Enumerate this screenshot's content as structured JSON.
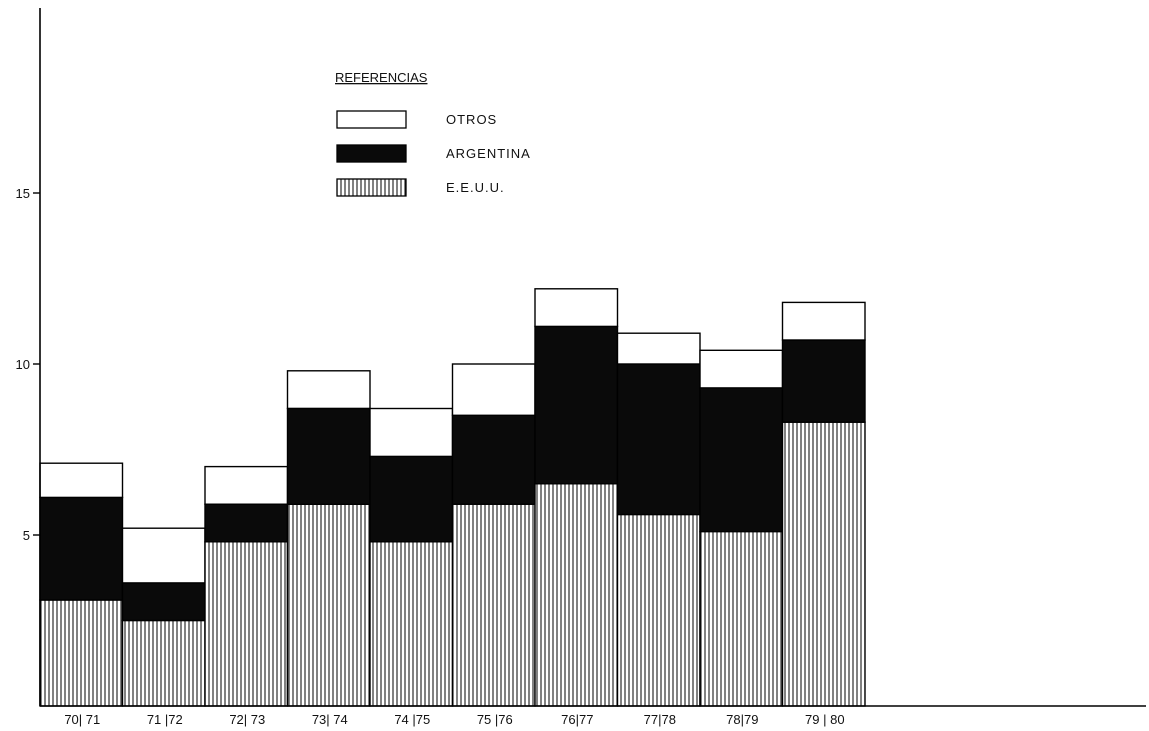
{
  "chart_data": {
    "type": "bar",
    "stacked": true,
    "categories": [
      "70| 71",
      "71 |72",
      "72| 73",
      "73| 74",
      "74 |75",
      "75 |76",
      "76|77",
      "77|78",
      "78|79",
      "79 | 80"
    ],
    "series": [
      {
        "name": "E.E.U.U.",
        "values": [
          3.1,
          2.5,
          4.8,
          5.9,
          4.8,
          5.9,
          6.5,
          5.6,
          5.1,
          8.3
        ],
        "color": "#ffffff",
        "pattern": "vertical-hatch"
      },
      {
        "name": "ARGENTINA",
        "values": [
          3.0,
          1.1,
          1.1,
          2.8,
          2.5,
          2.6,
          4.6,
          4.4,
          4.2,
          2.4
        ],
        "color": "#0a0a0a",
        "pattern": "solid"
      },
      {
        "name": "OTROS",
        "values": [
          1.0,
          1.6,
          1.1,
          1.1,
          1.4,
          1.5,
          1.1,
          0.9,
          1.1,
          1.1
        ],
        "color": "#ffffff",
        "pattern": "empty"
      }
    ],
    "yticks": [
      5,
      10,
      15
    ],
    "ylim": [
      0,
      20
    ],
    "legend_title": "REFERENCIAS",
    "legend_position": "top-center",
    "legend_order": [
      "OTROS",
      "ARGENTINA",
      "E.E.U.U."
    ],
    "grid": false
  }
}
